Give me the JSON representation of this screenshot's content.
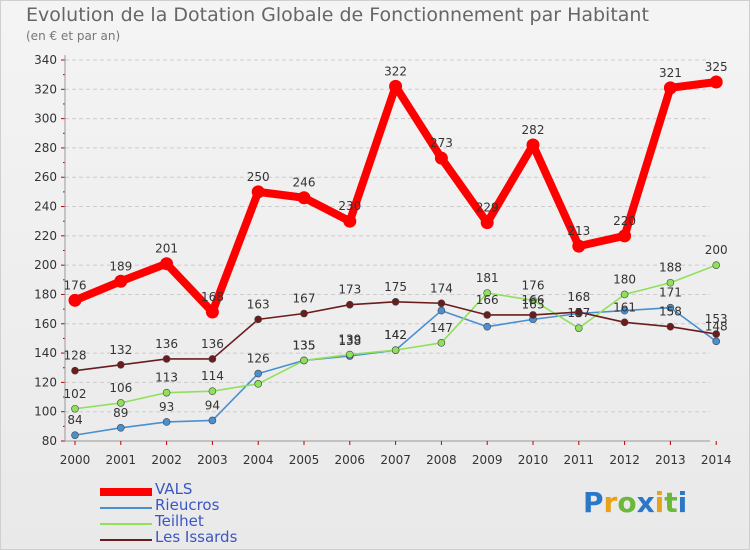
{
  "header": {
    "title": "Evolution de la Dotation Globale de Fonctionnement par Habitant",
    "subtitle": "(en € et par an)"
  },
  "logo": {
    "text": "Proxiti"
  },
  "chart_data": {
    "type": "line",
    "title": "Evolution de la Dotation Globale de Fonctionnement par Habitant",
    "subtitle": "(en € et par an)",
    "xlabel": "",
    "ylabel": "",
    "x": [
      "2000",
      "2001",
      "2002",
      "2003",
      "2004",
      "2005",
      "2006",
      "2007",
      "2008",
      "2009",
      "2010",
      "2011",
      "2012",
      "2013",
      "2014"
    ],
    "ylim": [
      80,
      340
    ],
    "yticks": [
      80,
      100,
      120,
      140,
      160,
      180,
      200,
      220,
      240,
      260,
      280,
      300,
      320,
      340
    ],
    "grid": "horizontal dashed",
    "legend_position": "bottom-left",
    "series": [
      {
        "name": "VALS",
        "color": "#ff0000",
        "values": [
          176,
          189,
          201,
          168,
          250,
          246,
          230,
          322,
          273,
          229,
          282,
          213,
          220,
          321,
          325
        ]
      },
      {
        "name": "Rieucros",
        "color": "#4a8fd0",
        "values": [
          84,
          89,
          93,
          94,
          126,
          135,
          138,
          142,
          169,
          158,
          163,
          167,
          169,
          171,
          148
        ]
      },
      {
        "name": "Teilhet",
        "color": "#8fe05a",
        "values": [
          102,
          106,
          113,
          114,
          119,
          135,
          139,
          142,
          147,
          181,
          176,
          157,
          180,
          188,
          200
        ]
      },
      {
        "name": "Les Issards",
        "color": "#6b1c1c",
        "values": [
          128,
          132,
          136,
          136,
          163,
          167,
          173,
          175,
          174,
          166,
          166,
          168,
          161,
          158,
          153
        ]
      }
    ],
    "data_labels": {
      "VALS": [
        "176",
        "189",
        "201",
        "168",
        "250",
        "246",
        "230",
        "322",
        "273",
        "229",
        "282",
        "213",
        "220",
        "321",
        "325"
      ],
      "Rieucros": [
        "84",
        "89",
        "93",
        "94",
        "126",
        "135",
        "138",
        "142",
        "",
        "",
        "163",
        "",
        "",
        "171",
        "148"
      ],
      "Teilhet": [
        "102",
        "106",
        "113",
        "114",
        "",
        "135",
        "139",
        "142",
        "147",
        "181",
        "176",
        "157",
        "180",
        "188",
        "200"
      ],
      "Les Issards": [
        "128",
        "132",
        "136",
        "136",
        "163",
        "167",
        "173",
        "175",
        "174",
        "166",
        "166",
        "168",
        "161",
        "158",
        "153"
      ]
    }
  }
}
